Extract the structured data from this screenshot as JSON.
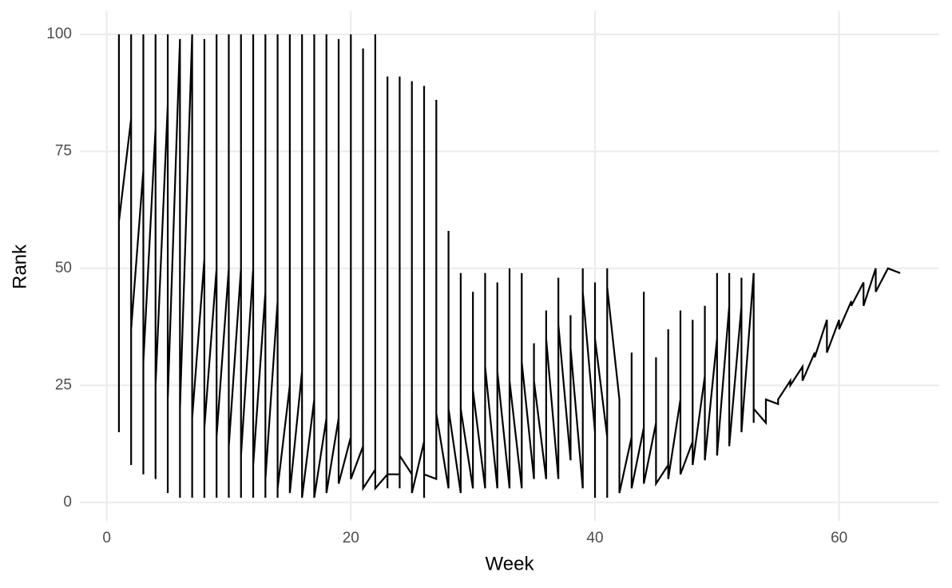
{
  "chart_data": {
    "type": "line",
    "x_label": "Week",
    "y_label": "Rank",
    "xlim": [
      -2.2,
      68.2
    ],
    "ylim": [
      -3.95,
      104.95
    ],
    "xticks": [
      0,
      20,
      40,
      60
    ],
    "yticks": [
      0,
      25,
      50,
      75,
      100
    ],
    "grid": true,
    "color": "#000000",
    "x": [
      1,
      1,
      1,
      2,
      2,
      2,
      2,
      3,
      3,
      3,
      3,
      4,
      4,
      4,
      4,
      5,
      5,
      5,
      5,
      6,
      6,
      6,
      7,
      7,
      7,
      8,
      8,
      8,
      8,
      9,
      9,
      9,
      9,
      10,
      10,
      10,
      10,
      11,
      11,
      11,
      11,
      12,
      12,
      12,
      12,
      13,
      13,
      13,
      13,
      14,
      14,
      14,
      14,
      15,
      15,
      15,
      16,
      16,
      16,
      17,
      17,
      17,
      18,
      18,
      18,
      19,
      19,
      19,
      20,
      20,
      20,
      21,
      21,
      21,
      22,
      22,
      22,
      23,
      23,
      23,
      23,
      24,
      24,
      24,
      24,
      25,
      25,
      25,
      26,
      26,
      26,
      26,
      27,
      27,
      27,
      28,
      28,
      28,
      29,
      29,
      29,
      30,
      30,
      30,
      31,
      31,
      31,
      32,
      32,
      32,
      33,
      33,
      33,
      34,
      34,
      34,
      35,
      35,
      35,
      36,
      36,
      36,
      37,
      37,
      37,
      38,
      38,
      38,
      39,
      39,
      39,
      40,
      40,
      40,
      40,
      41,
      41,
      41,
      41,
      42,
      42,
      43,
      43,
      43,
      44,
      44,
      44,
      45,
      45,
      45,
      46,
      46,
      46,
      47,
      47,
      47,
      48,
      48,
      48,
      49,
      49,
      49,
      50,
      50,
      50,
      51,
      51,
      51,
      52,
      52,
      52,
      53,
      53,
      53,
      54,
      54,
      55,
      55,
      56,
      56,
      57,
      57,
      58,
      58,
      59,
      59,
      60,
      60,
      61,
      61,
      62,
      62,
      63,
      63,
      64,
      65
    ],
    "y": [
      15,
      100,
      60,
      82,
      100,
      8,
      37,
      71,
      100,
      6,
      30,
      80,
      100,
      5,
      25,
      85,
      100,
      2,
      22,
      99,
      1,
      20,
      100,
      1,
      18,
      52,
      99,
      1,
      16,
      50,
      100,
      1,
      14,
      50,
      100,
      1,
      12,
      50,
      100,
      1,
      10,
      50,
      100,
      1,
      8,
      45,
      100,
      1,
      5,
      43,
      100,
      1,
      3,
      25,
      100,
      2,
      28,
      100,
      1,
      22,
      100,
      1,
      18,
      100,
      2,
      18,
      99,
      4,
      14,
      100,
      5,
      12,
      97,
      3,
      7,
      100,
      3,
      6,
      91,
      3,
      6,
      6,
      91,
      3,
      10,
      6,
      90,
      2,
      13,
      89,
      1,
      6,
      5,
      86,
      19,
      3,
      58,
      20,
      2,
      49,
      20,
      3,
      45,
      24,
      3,
      49,
      29,
      3,
      47,
      28,
      3,
      50,
      26,
      3,
      49,
      30,
      5,
      34,
      26,
      5,
      41,
      35,
      5,
      48,
      38,
      9,
      40,
      33,
      3,
      50,
      45,
      15,
      1,
      47,
      35,
      14,
      1,
      50,
      46,
      22,
      2,
      14,
      32,
      3,
      16,
      45,
      4,
      17,
      31,
      4,
      8,
      37,
      5,
      22,
      41,
      6,
      13,
      39,
      8,
      27,
      42,
      9,
      35,
      49,
      10,
      42,
      49,
      12,
      42,
      48,
      15,
      49,
      17,
      20,
      17,
      22,
      21,
      22,
      26,
      25,
      29,
      26,
      32,
      31,
      39,
      32,
      39,
      37,
      43,
      42,
      47,
      42,
      50,
      45,
      50,
      49
    ]
  }
}
